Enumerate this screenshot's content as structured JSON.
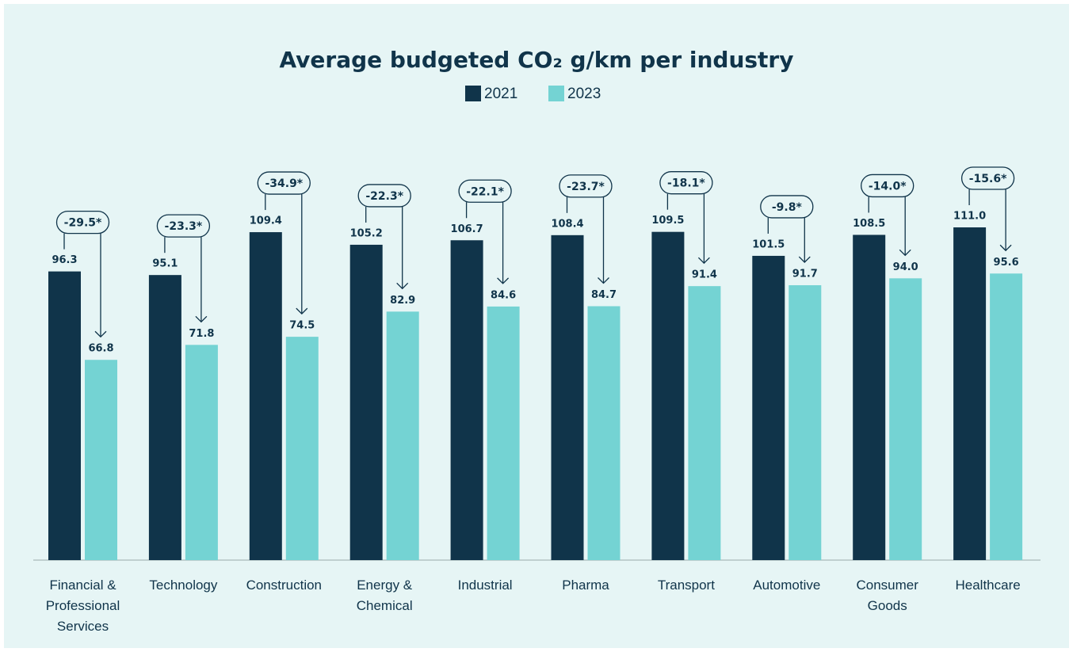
{
  "chart_data": {
    "type": "bar",
    "title": "Average budgeted CO₂ g/km per industry",
    "categories": [
      "Financial & Professional Services",
      "Technology",
      "Construction",
      "Energy & Chemical",
      "Industrial",
      "Pharma",
      "Transport",
      "Automotive",
      "Consumer Goods",
      "Healthcare"
    ],
    "series": [
      {
        "name": "2021",
        "color": "#10344a",
        "values": [
          96.3,
          95.1,
          109.4,
          105.2,
          106.7,
          108.4,
          109.5,
          101.5,
          108.5,
          111.0
        ],
        "value_labels": [
          "96.3",
          "95.1",
          "109.4",
          "105.2",
          "106.7",
          "108.4",
          "109.5",
          "101.5",
          "108.5",
          "111.0"
        ]
      },
      {
        "name": "2023",
        "color": "#74d3d3",
        "values": [
          66.8,
          71.8,
          74.5,
          82.9,
          84.6,
          84.7,
          91.4,
          91.7,
          94.0,
          95.6
        ],
        "value_labels": [
          "66.8",
          "71.8",
          "74.5",
          "82.9",
          "84.6",
          "84.7",
          "91.4",
          "91.7",
          "94.0",
          "95.6"
        ]
      }
    ],
    "annotations": [
      "-29.5*",
      "-23.3*",
      "-34.9*",
      "-22.3*",
      "-22.1*",
      "-23.7*",
      "-18.1*",
      "-9.8*",
      "-14.0*",
      "-15.6*"
    ],
    "ylim": [
      0,
      111
    ]
  }
}
